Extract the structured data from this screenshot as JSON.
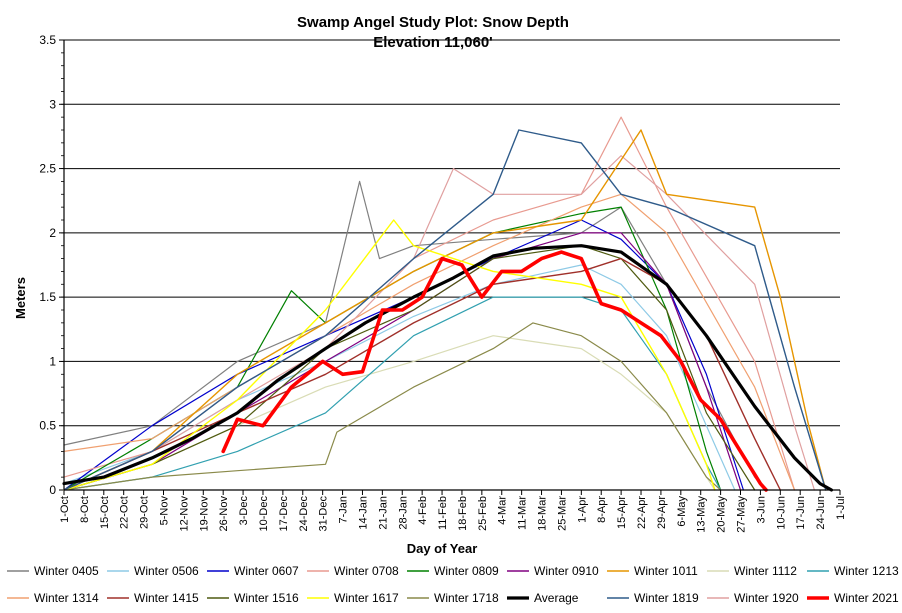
{
  "chart_data": {
    "type": "line",
    "title": "Swamp Angel Study Plot: Snow Depth",
    "subtitle": "Elevation 11,060'",
    "xlabel": "Day of Year",
    "ylabel": "Meters",
    "ylim": [
      0,
      3.5
    ],
    "yticks": [
      "0",
      "0.5",
      "1",
      "1.5",
      "2",
      "2.5",
      "3",
      "3.5"
    ],
    "x_start": "1-Oct",
    "x_end": "1-Jul",
    "xtick_labels": [
      "1-Oct",
      "8-Oct",
      "15-Oct",
      "22-Oct",
      "29-Oct",
      "5-Nov",
      "12-Nov",
      "19-Nov",
      "26-Nov",
      "3-Dec",
      "10-Dec",
      "17-Dec",
      "24-Dec",
      "31-Dec",
      "7-Jan",
      "14-Jan",
      "21-Jan",
      "28-Jan",
      "4-Feb",
      "11-Feb",
      "18-Feb",
      "25-Feb",
      "4-Mar",
      "11-Mar",
      "18-Mar",
      "25-Mar",
      "1-Apr",
      "8-Apr",
      "15-Apr",
      "22-Apr",
      "29-Apr",
      "6-May",
      "13-May",
      "20-May",
      "27-May",
      "3-Jun",
      "10-Jun",
      "17-Jun",
      "24-Jun",
      "1-Jul"
    ],
    "grid": "horizontal",
    "legend_position": "bottom",
    "series": [
      {
        "name": "Winter 0405",
        "color": "#808080",
        "width": 1.2,
        "points": [
          [
            "1-Oct",
            0.35
          ],
          [
            "1-Nov",
            0.5
          ],
          [
            "1-Dec",
            1.0
          ],
          [
            "1-Jan",
            1.3
          ],
          [
            "13-Jan",
            2.4
          ],
          [
            "20-Jan",
            1.8
          ],
          [
            "1-Feb",
            1.9
          ],
          [
            "1-Mar",
            1.95
          ],
          [
            "1-Apr",
            2.0
          ],
          [
            "15-Apr",
            2.2
          ],
          [
            "1-May",
            1.6
          ],
          [
            "15-May",
            0.8
          ],
          [
            "1-Jun",
            0.1
          ],
          [
            "5-Jun",
            0.0
          ]
        ]
      },
      {
        "name": "Winter 0506",
        "color": "#8ecae6",
        "width": 1.2,
        "points": [
          [
            "1-Oct",
            0.05
          ],
          [
            "1-Nov",
            0.3
          ],
          [
            "1-Dec",
            0.7
          ],
          [
            "1-Jan",
            1.0
          ],
          [
            "1-Feb",
            1.35
          ],
          [
            "1-Mar",
            1.6
          ],
          [
            "1-Apr",
            1.75
          ],
          [
            "15-Apr",
            1.6
          ],
          [
            "1-May",
            1.2
          ],
          [
            "15-May",
            0.5
          ],
          [
            "25-May",
            0.0
          ]
        ]
      },
      {
        "name": "Winter 0607",
        "color": "#0000cc",
        "width": 1.2,
        "points": [
          [
            "1-Oct",
            0.0
          ],
          [
            "1-Nov",
            0.5
          ],
          [
            "1-Dec",
            0.9
          ],
          [
            "1-Jan",
            1.2
          ],
          [
            "1-Feb",
            1.5
          ],
          [
            "1-Mar",
            1.8
          ],
          [
            "1-Apr",
            2.1
          ],
          [
            "15-Apr",
            1.95
          ],
          [
            "1-May",
            1.6
          ],
          [
            "15-May",
            0.9
          ],
          [
            "28-May",
            0.0
          ]
        ]
      },
      {
        "name": "Winter 0708",
        "color": "#e89a90",
        "width": 1.2,
        "points": [
          [
            "1-Oct",
            0.1
          ],
          [
            "1-Nov",
            0.3
          ],
          [
            "1-Dec",
            0.8
          ],
          [
            "1-Jan",
            1.2
          ],
          [
            "1-Feb",
            1.8
          ],
          [
            "1-Mar",
            2.1
          ],
          [
            "1-Apr",
            2.3
          ],
          [
            "15-Apr",
            2.9
          ],
          [
            "1-May",
            2.2
          ],
          [
            "1-Jun",
            1.0
          ],
          [
            "15-Jun",
            0.0
          ]
        ]
      },
      {
        "name": "Winter 0809",
        "color": "#008000",
        "width": 1.2,
        "points": [
          [
            "1-Oct",
            0.0
          ],
          [
            "1-Nov",
            0.4
          ],
          [
            "1-Dec",
            0.8
          ],
          [
            "20-Dec",
            1.55
          ],
          [
            "1-Jan",
            1.3
          ],
          [
            "1-Feb",
            1.7
          ],
          [
            "1-Mar",
            2.0
          ],
          [
            "1-Apr",
            2.15
          ],
          [
            "15-Apr",
            2.2
          ],
          [
            "1-May",
            1.4
          ],
          [
            "15-May",
            0.3
          ],
          [
            "20-May",
            0.0
          ]
        ]
      },
      {
        "name": "Winter 0910",
        "color": "#800080",
        "width": 1.2,
        "points": [
          [
            "1-Oct",
            0.0
          ],
          [
            "1-Nov",
            0.2
          ],
          [
            "1-Dec",
            0.6
          ],
          [
            "1-Jan",
            1.0
          ],
          [
            "1-Feb",
            1.4
          ],
          [
            "1-Mar",
            1.8
          ],
          [
            "1-Apr",
            2.0
          ],
          [
            "15-Apr",
            2.0
          ],
          [
            "1-May",
            1.6
          ],
          [
            "15-May",
            0.8
          ],
          [
            "27-May",
            0.0
          ]
        ]
      },
      {
        "name": "Winter 1011",
        "color": "#e69500",
        "width": 1.4,
        "points": [
          [
            "1-Oct",
            0.0
          ],
          [
            "1-Nov",
            0.3
          ],
          [
            "1-Dec",
            0.9
          ],
          [
            "1-Jan",
            1.3
          ],
          [
            "1-Feb",
            1.7
          ],
          [
            "1-Mar",
            2.0
          ],
          [
            "1-Apr",
            2.1
          ],
          [
            "22-Apr",
            2.8
          ],
          [
            "1-May",
            2.3
          ],
          [
            "1-Jun",
            2.2
          ],
          [
            "10-Jun",
            1.5
          ],
          [
            "20-Jun",
            0.5
          ],
          [
            "26-Jun",
            0.0
          ]
        ]
      },
      {
        "name": "Winter 1112",
        "color": "#d9dcb5",
        "width": 1.2,
        "points": [
          [
            "1-Oct",
            0.0
          ],
          [
            "1-Nov",
            0.2
          ],
          [
            "1-Dec",
            0.5
          ],
          [
            "1-Jan",
            0.8
          ],
          [
            "1-Feb",
            1.0
          ],
          [
            "1-Mar",
            1.2
          ],
          [
            "1-Apr",
            1.1
          ],
          [
            "15-Apr",
            0.9
          ],
          [
            "1-May",
            0.6
          ],
          [
            "15-May",
            0.1
          ],
          [
            "18-May",
            0.0
          ]
        ]
      },
      {
        "name": "Winter 1213",
        "color": "#31a0b0",
        "width": 1.2,
        "points": [
          [
            "1-Oct",
            0.0
          ],
          [
            "1-Nov",
            0.1
          ],
          [
            "1-Dec",
            0.3
          ],
          [
            "1-Jan",
            0.6
          ],
          [
            "1-Feb",
            1.2
          ],
          [
            "1-Mar",
            1.5
          ],
          [
            "1-Apr",
            1.5
          ],
          [
            "15-Apr",
            1.4
          ],
          [
            "1-May",
            0.9
          ],
          [
            "15-May",
            0.2
          ],
          [
            "20-May",
            0.0
          ]
        ]
      },
      {
        "name": "Winter 1314",
        "color": "#f0a070",
        "width": 1.2,
        "points": [
          [
            "1-Oct",
            0.3
          ],
          [
            "1-Nov",
            0.4
          ],
          [
            "1-Dec",
            0.8
          ],
          [
            "1-Jan",
            1.2
          ],
          [
            "1-Feb",
            1.6
          ],
          [
            "1-Mar",
            1.9
          ],
          [
            "1-Apr",
            2.2
          ],
          [
            "15-Apr",
            2.3
          ],
          [
            "1-May",
            2.0
          ],
          [
            "1-Jun",
            0.8
          ],
          [
            "15-Jun",
            0.0
          ]
        ]
      },
      {
        "name": "Winter 1415",
        "color": "#a0302a",
        "width": 1.4,
        "points": [
          [
            "1-Oct",
            0.0
          ],
          [
            "1-Nov",
            0.3
          ],
          [
            "1-Dec",
            0.6
          ],
          [
            "1-Jan",
            0.9
          ],
          [
            "1-Feb",
            1.3
          ],
          [
            "1-Mar",
            1.6
          ],
          [
            "1-Apr",
            1.7
          ],
          [
            "15-Apr",
            1.8
          ],
          [
            "1-May",
            1.6
          ],
          [
            "15-May",
            1.2
          ],
          [
            "1-Jun",
            0.4
          ],
          [
            "10-Jun",
            0.0
          ]
        ]
      },
      {
        "name": "Winter 1516",
        "color": "#4f5a10",
        "width": 1.2,
        "points": [
          [
            "1-Oct",
            0.0
          ],
          [
            "1-Nov",
            0.2
          ],
          [
            "1-Dec",
            0.5
          ],
          [
            "1-Jan",
            1.1
          ],
          [
            "1-Feb",
            1.4
          ],
          [
            "1-Mar",
            1.8
          ],
          [
            "1-Apr",
            1.9
          ],
          [
            "15-Apr",
            1.8
          ],
          [
            "1-May",
            1.4
          ],
          [
            "15-May",
            0.6
          ],
          [
            "1-Jun",
            0.0
          ]
        ]
      },
      {
        "name": "Winter 1617",
        "color": "#ffff00",
        "width": 1.4,
        "points": [
          [
            "1-Oct",
            0.0
          ],
          [
            "1-Nov",
            0.2
          ],
          [
            "1-Dec",
            0.7
          ],
          [
            "1-Jan",
            1.4
          ],
          [
            "25-Jan",
            2.1
          ],
          [
            "1-Feb",
            1.9
          ],
          [
            "1-Mar",
            1.7
          ],
          [
            "1-Apr",
            1.6
          ],
          [
            "15-Apr",
            1.5
          ],
          [
            "1-May",
            0.9
          ],
          [
            "15-May",
            0.2
          ],
          [
            "18-May",
            0.0
          ]
        ]
      },
      {
        "name": "Winter 1718",
        "color": "#8a8a4a",
        "width": 1.2,
        "points": [
          [
            "1-Oct",
            0.0
          ],
          [
            "1-Nov",
            0.1
          ],
          [
            "1-Dec",
            0.15
          ],
          [
            "1-Jan",
            0.2
          ],
          [
            "5-Jan",
            0.45
          ],
          [
            "1-Feb",
            0.8
          ],
          [
            "1-Mar",
            1.1
          ],
          [
            "15-Mar",
            1.3
          ],
          [
            "1-Apr",
            1.2
          ],
          [
            "15-Apr",
            1.0
          ],
          [
            "1-May",
            0.6
          ],
          [
            "15-May",
            0.1
          ],
          [
            "20-May",
            0.0
          ]
        ]
      },
      {
        "name": "Average",
        "color": "#000000",
        "width": 3.2,
        "points": [
          [
            "1-Oct",
            0.05
          ],
          [
            "15-Oct",
            0.1
          ],
          [
            "1-Nov",
            0.25
          ],
          [
            "15-Nov",
            0.4
          ],
          [
            "1-Dec",
            0.6
          ],
          [
            "15-Dec",
            0.85
          ],
          [
            "1-Jan",
            1.1
          ],
          [
            "15-Jan",
            1.3
          ],
          [
            "1-Feb",
            1.5
          ],
          [
            "15-Feb",
            1.65
          ],
          [
            "1-Mar",
            1.82
          ],
          [
            "15-Mar",
            1.88
          ],
          [
            "1-Apr",
            1.9
          ],
          [
            "15-Apr",
            1.85
          ],
          [
            "1-May",
            1.6
          ],
          [
            "15-May",
            1.2
          ],
          [
            "1-Jun",
            0.65
          ],
          [
            "15-Jun",
            0.25
          ],
          [
            "24-Jun",
            0.05
          ],
          [
            "28-Jun",
            0.0
          ]
        ]
      },
      {
        "name": "Winter 1819",
        "color": "#2f5b8a",
        "width": 1.4,
        "points": [
          [
            "1-Oct",
            0.0
          ],
          [
            "1-Nov",
            0.3
          ],
          [
            "1-Dec",
            0.8
          ],
          [
            "1-Jan",
            1.2
          ],
          [
            "1-Feb",
            1.8
          ],
          [
            "1-Mar",
            2.3
          ],
          [
            "10-Mar",
            2.8
          ],
          [
            "1-Apr",
            2.7
          ],
          [
            "15-Apr",
            2.3
          ],
          [
            "1-May",
            2.2
          ],
          [
            "1-Jun",
            1.9
          ],
          [
            "15-Jun",
            0.8
          ],
          [
            "26-Jun",
            0.0
          ]
        ]
      },
      {
        "name": "Winter 1920",
        "color": "#e0a0a0",
        "width": 1.2,
        "points": [
          [
            "1-Oct",
            0.0
          ],
          [
            "1-Nov",
            0.3
          ],
          [
            "1-Dec",
            0.7
          ],
          [
            "1-Jan",
            1.1
          ],
          [
            "1-Feb",
            1.8
          ],
          [
            "15-Feb",
            2.5
          ],
          [
            "1-Mar",
            2.3
          ],
          [
            "1-Apr",
            2.3
          ],
          [
            "15-Apr",
            2.6
          ],
          [
            "1-May",
            2.3
          ],
          [
            "1-Jun",
            1.6
          ],
          [
            "15-Jun",
            0.5
          ],
          [
            "22-Jun",
            0.0
          ]
        ]
      },
      {
        "name": "Winter 2021",
        "color": "#ff0000",
        "width": 3.6,
        "points": [
          [
            "26-Nov",
            0.3
          ],
          [
            "1-Dec",
            0.55
          ],
          [
            "10-Dec",
            0.5
          ],
          [
            "20-Dec",
            0.8
          ],
          [
            "31-Dec",
            1.0
          ],
          [
            "7-Jan",
            0.9
          ],
          [
            "14-Jan",
            0.92
          ],
          [
            "21-Jan",
            1.4
          ],
          [
            "28-Jan",
            1.4
          ],
          [
            "4-Feb",
            1.5
          ],
          [
            "11-Feb",
            1.8
          ],
          [
            "18-Feb",
            1.75
          ],
          [
            "25-Feb",
            1.5
          ],
          [
            "4-Mar",
            1.7
          ],
          [
            "11-Mar",
            1.7
          ],
          [
            "18-Mar",
            1.8
          ],
          [
            "25-Mar",
            1.85
          ],
          [
            "1-Apr",
            1.8
          ],
          [
            "8-Apr",
            1.45
          ],
          [
            "15-Apr",
            1.4
          ],
          [
            "22-Apr",
            1.3
          ],
          [
            "29-Apr",
            1.2
          ],
          [
            "6-May",
            1.0
          ],
          [
            "13-May",
            0.7
          ],
          [
            "20-May",
            0.55
          ],
          [
            "27-May",
            0.3
          ],
          [
            "3-Jun",
            0.05
          ],
          [
            "5-Jun",
            0.0
          ]
        ]
      }
    ]
  }
}
